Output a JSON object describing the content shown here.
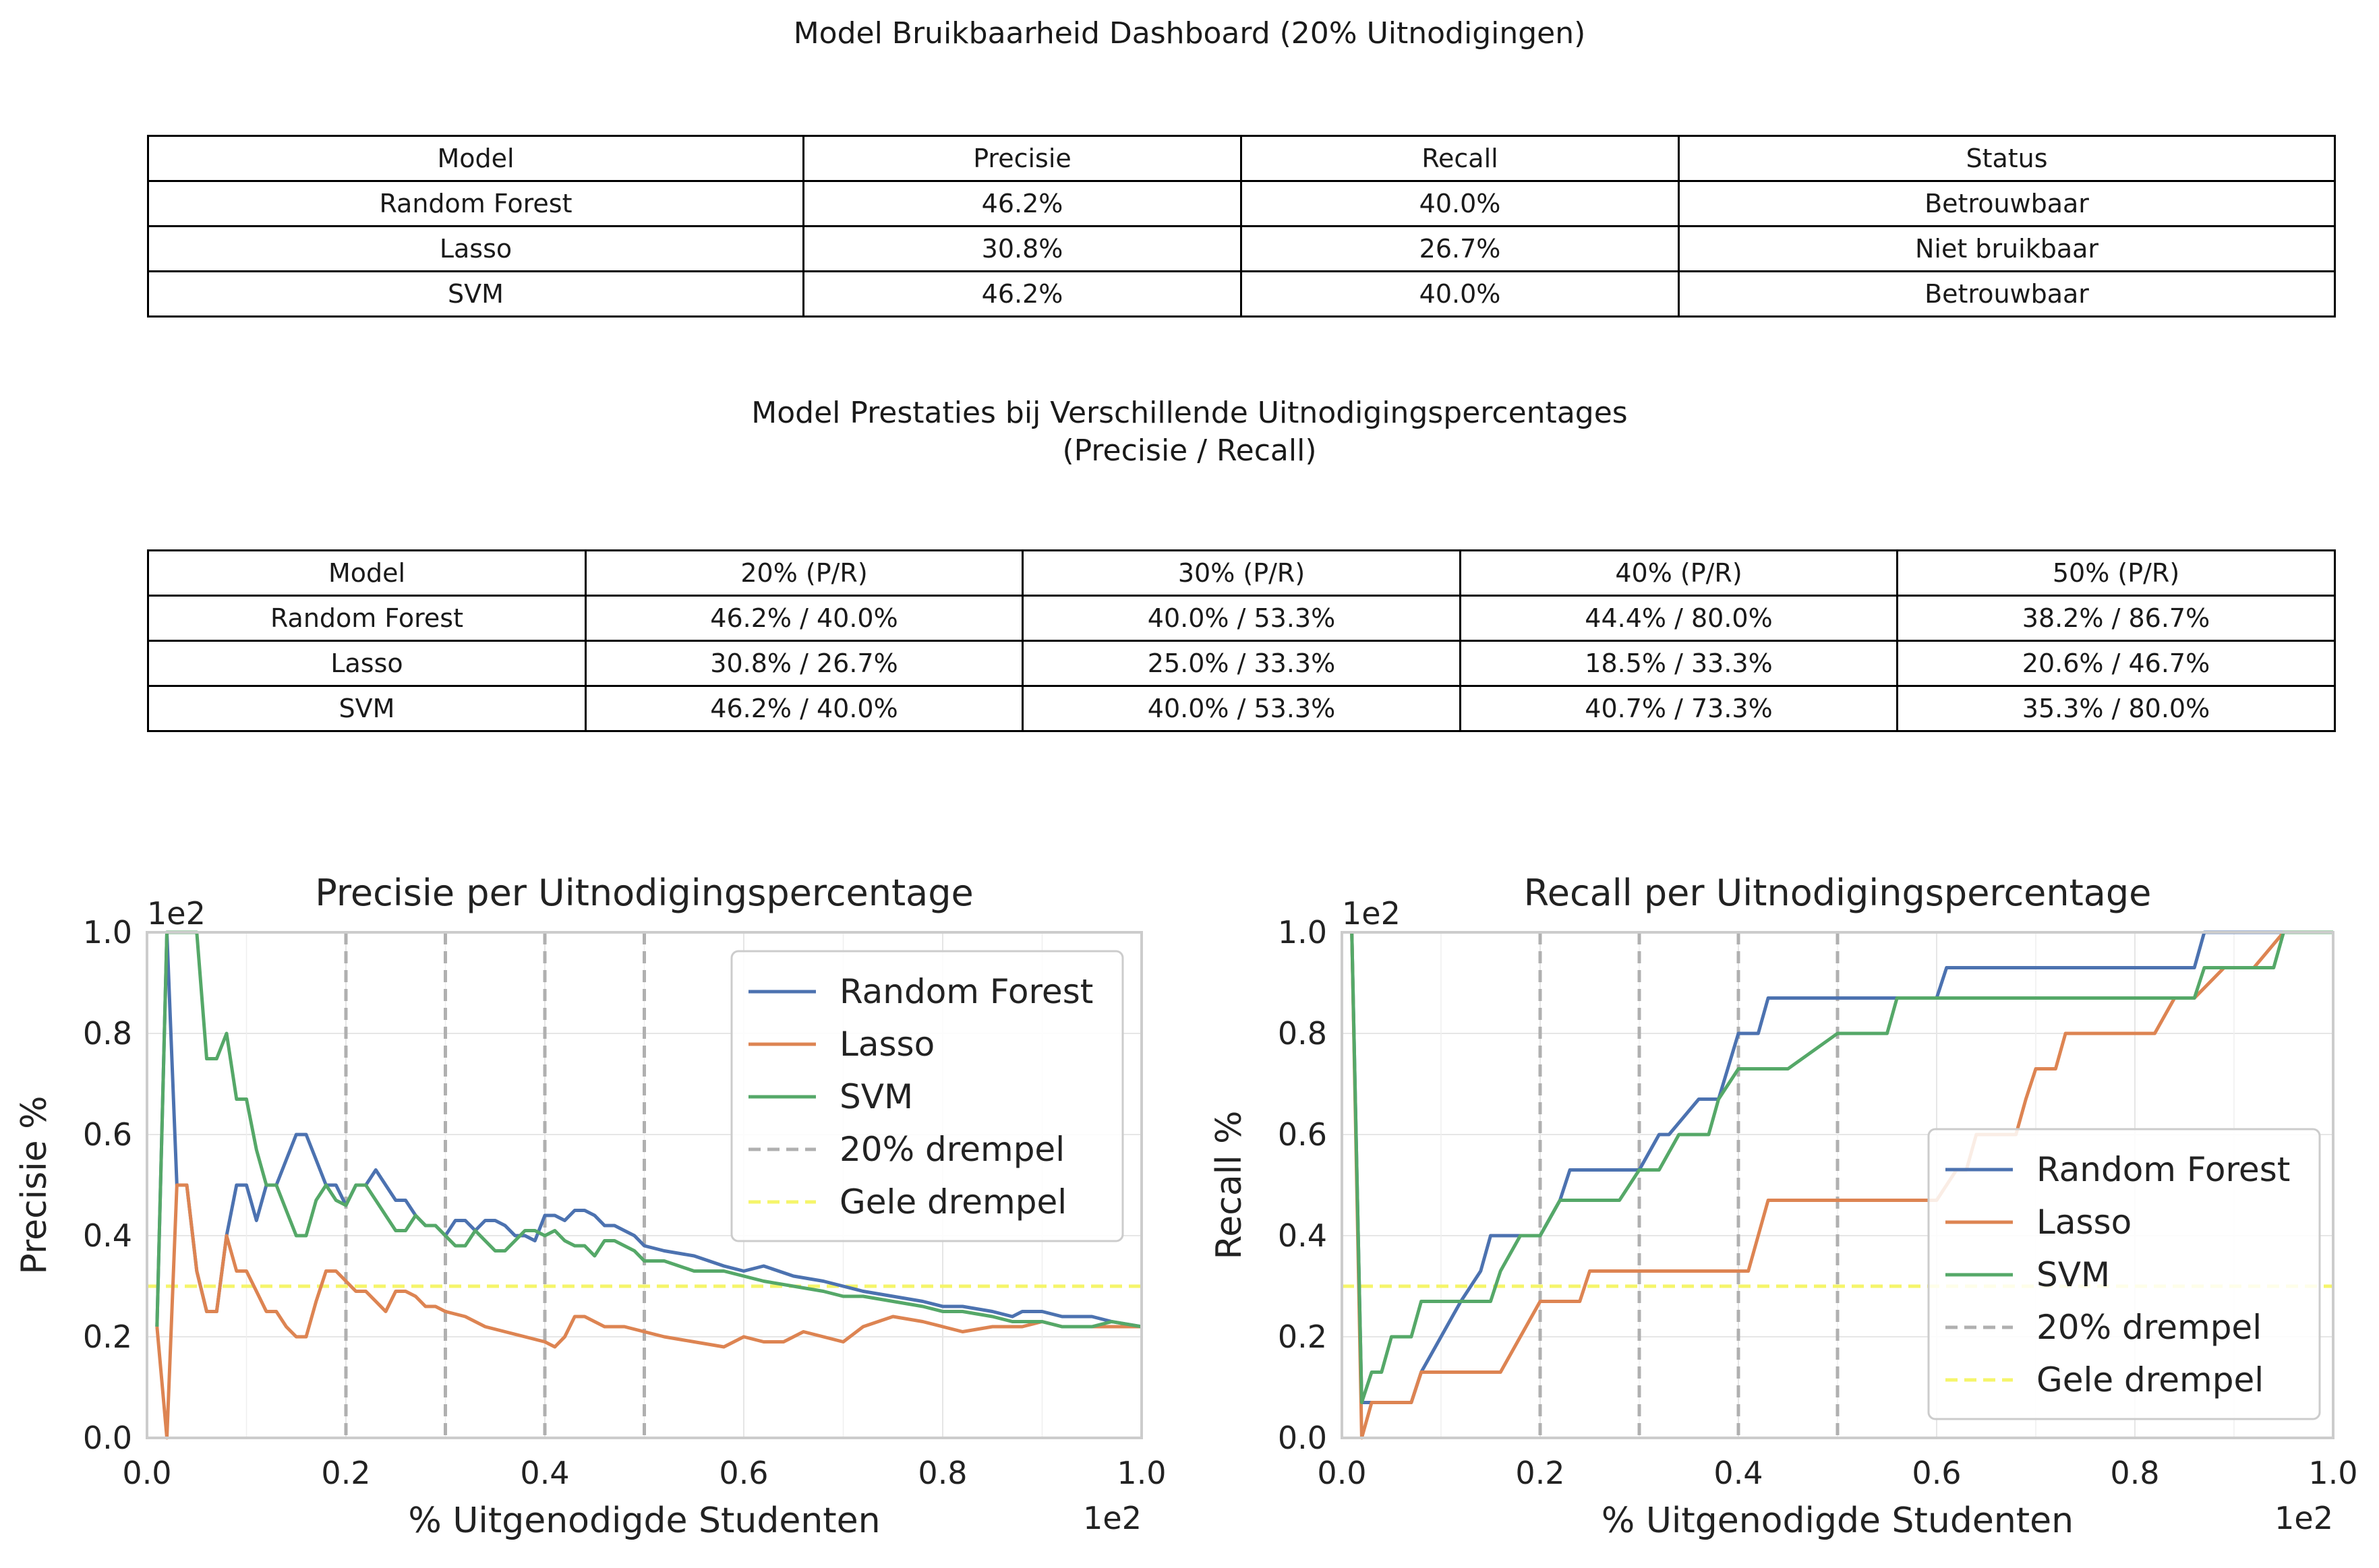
{
  "dashboard": {
    "title": "Model Bruikbaarheid Dashboard (20% Uitnodigingen)",
    "headers": [
      "Model",
      "Precisie",
      "Recall",
      "Status"
    ],
    "rows": [
      [
        "Random Forest",
        "46.2%",
        "40.0%",
        "Betrouwbaar"
      ],
      [
        "Lasso",
        "30.8%",
        "26.7%",
        "Niet bruikbaar"
      ],
      [
        "SVM",
        "46.2%",
        "40.0%",
        "Betrouwbaar"
      ]
    ]
  },
  "performance": {
    "title_line1": "Model Prestaties bij Verschillende Uitnodigingspercentages",
    "title_line2": "(Precisie / Recall)",
    "headers": [
      "Model",
      "20% (P/R)",
      "30% (P/R)",
      "40% (P/R)",
      "50% (P/R)"
    ],
    "rows": [
      [
        "Random Forest",
        "46.2% / 40.0%",
        "40.0% / 53.3%",
        "44.4% / 80.0%",
        "38.2% / 86.7%"
      ],
      [
        "Lasso",
        "30.8% / 26.7%",
        "25.0% / 33.3%",
        "18.5% / 33.3%",
        "20.6% / 46.7%"
      ],
      [
        "SVM",
        "46.2% / 40.0%",
        "40.0% / 53.3%",
        "40.7% / 73.3%",
        "35.3% / 80.0%"
      ]
    ]
  },
  "chart_data": [
    {
      "type": "line",
      "title": "Precisie per Uitnodigingspercentage",
      "xlabel": "% Uitgenodigde Studenten",
      "ylabel": "Precisie %",
      "x_offset_text": "1e2",
      "y_offset_text": "1e2",
      "xlim": [
        0,
        1.0
      ],
      "ylim": [
        0,
        1.0
      ],
      "xticks": [
        "0.0",
        "0.2",
        "0.4",
        "0.6",
        "0.8",
        "1.0"
      ],
      "yticks": [
        "0.0",
        "0.2",
        "0.4",
        "0.6",
        "0.8",
        "1.0"
      ],
      "grid": true,
      "legend_position": "top-right",
      "colors": {
        "Random Forest": "#4c72b0",
        "Lasso": "#dd8452",
        "SVM": "#55a868",
        "threshold20": "#b0b0b0",
        "yellow": "#f5f56a"
      },
      "vlines": [
        0.2,
        0.3,
        0.4,
        0.5
      ],
      "hline": 0.3,
      "legend": [
        "Random Forest",
        "Lasso",
        "SVM",
        "20% drempel",
        "Gele drempel"
      ],
      "series": [
        {
          "name": "Random Forest",
          "x": [
            0.01,
            0.02,
            0.03,
            0.04,
            0.05,
            0.06,
            0.07,
            0.08,
            0.09,
            0.1,
            0.11,
            0.12,
            0.13,
            0.14,
            0.15,
            0.16,
            0.17,
            0.18,
            0.19,
            0.2,
            0.21,
            0.22,
            0.23,
            0.24,
            0.25,
            0.26,
            0.27,
            0.28,
            0.29,
            0.3,
            0.31,
            0.32,
            0.33,
            0.34,
            0.35,
            0.36,
            0.37,
            0.38,
            0.39,
            0.4,
            0.41,
            0.42,
            0.43,
            0.44,
            0.45,
            0.46,
            0.47,
            0.48,
            0.49,
            0.5,
            0.52,
            0.55,
            0.58,
            0.6,
            0.62,
            0.65,
            0.68,
            0.7,
            0.72,
            0.75,
            0.78,
            0.8,
            0.82,
            0.85,
            0.87,
            0.88,
            0.9,
            0.92,
            0.95,
            0.97,
            1.0
          ],
          "y": [
            0.22,
            1.0,
            0.5,
            0.5,
            0.33,
            0.25,
            0.25,
            0.4,
            0.5,
            0.5,
            0.43,
            0.5,
            0.5,
            0.55,
            0.6,
            0.6,
            0.55,
            0.5,
            0.5,
            0.46,
            0.5,
            0.5,
            0.53,
            0.5,
            0.47,
            0.47,
            0.44,
            0.42,
            0.42,
            0.4,
            0.43,
            0.43,
            0.41,
            0.43,
            0.43,
            0.42,
            0.4,
            0.4,
            0.39,
            0.44,
            0.44,
            0.43,
            0.45,
            0.45,
            0.44,
            0.42,
            0.42,
            0.41,
            0.4,
            0.38,
            0.37,
            0.36,
            0.34,
            0.33,
            0.34,
            0.32,
            0.31,
            0.3,
            0.29,
            0.28,
            0.27,
            0.26,
            0.26,
            0.25,
            0.24,
            0.25,
            0.25,
            0.24,
            0.24,
            0.23,
            0.22
          ]
        },
        {
          "name": "Lasso",
          "x": [
            0.01,
            0.02,
            0.03,
            0.04,
            0.05,
            0.06,
            0.07,
            0.08,
            0.09,
            0.1,
            0.11,
            0.12,
            0.13,
            0.14,
            0.15,
            0.16,
            0.17,
            0.18,
            0.19,
            0.2,
            0.21,
            0.22,
            0.23,
            0.24,
            0.25,
            0.26,
            0.27,
            0.28,
            0.29,
            0.3,
            0.32,
            0.34,
            0.36,
            0.38,
            0.4,
            0.41,
            0.42,
            0.43,
            0.44,
            0.46,
            0.48,
            0.5,
            0.52,
            0.55,
            0.58,
            0.6,
            0.62,
            0.64,
            0.66,
            0.68,
            0.7,
            0.72,
            0.75,
            0.78,
            0.8,
            0.82,
            0.85,
            0.88,
            0.9,
            0.92,
            0.95,
            1.0
          ],
          "y": [
            0.22,
            0.0,
            0.5,
            0.5,
            0.33,
            0.25,
            0.25,
            0.4,
            0.33,
            0.33,
            0.29,
            0.25,
            0.25,
            0.22,
            0.2,
            0.2,
            0.27,
            0.33,
            0.33,
            0.31,
            0.29,
            0.29,
            0.27,
            0.25,
            0.29,
            0.29,
            0.28,
            0.26,
            0.26,
            0.25,
            0.24,
            0.22,
            0.21,
            0.2,
            0.19,
            0.18,
            0.2,
            0.24,
            0.24,
            0.22,
            0.22,
            0.21,
            0.2,
            0.19,
            0.18,
            0.2,
            0.19,
            0.19,
            0.21,
            0.2,
            0.19,
            0.22,
            0.24,
            0.23,
            0.22,
            0.21,
            0.22,
            0.22,
            0.23,
            0.22,
            0.22,
            0.22
          ]
        },
        {
          "name": "SVM",
          "x": [
            0.01,
            0.02,
            0.03,
            0.04,
            0.05,
            0.06,
            0.07,
            0.08,
            0.09,
            0.1,
            0.11,
            0.12,
            0.13,
            0.14,
            0.15,
            0.16,
            0.17,
            0.18,
            0.19,
            0.2,
            0.21,
            0.22,
            0.23,
            0.24,
            0.25,
            0.26,
            0.27,
            0.28,
            0.29,
            0.3,
            0.31,
            0.32,
            0.33,
            0.34,
            0.35,
            0.36,
            0.37,
            0.38,
            0.39,
            0.4,
            0.41,
            0.42,
            0.43,
            0.44,
            0.45,
            0.46,
            0.47,
            0.48,
            0.49,
            0.5,
            0.52,
            0.55,
            0.58,
            0.6,
            0.62,
            0.65,
            0.68,
            0.7,
            0.72,
            0.75,
            0.78,
            0.8,
            0.82,
            0.85,
            0.87,
            0.88,
            0.9,
            0.92,
            0.95,
            0.97,
            1.0
          ],
          "y": [
            0.22,
            1.0,
            1.0,
            1.0,
            1.0,
            0.75,
            0.75,
            0.8,
            0.67,
            0.67,
            0.57,
            0.5,
            0.5,
            0.45,
            0.4,
            0.4,
            0.47,
            0.5,
            0.47,
            0.46,
            0.5,
            0.5,
            0.47,
            0.44,
            0.41,
            0.41,
            0.44,
            0.42,
            0.42,
            0.4,
            0.38,
            0.38,
            0.41,
            0.39,
            0.37,
            0.37,
            0.39,
            0.41,
            0.41,
            0.4,
            0.41,
            0.39,
            0.38,
            0.38,
            0.36,
            0.39,
            0.39,
            0.38,
            0.37,
            0.35,
            0.35,
            0.33,
            0.33,
            0.32,
            0.31,
            0.3,
            0.29,
            0.28,
            0.28,
            0.27,
            0.26,
            0.25,
            0.25,
            0.24,
            0.23,
            0.23,
            0.23,
            0.22,
            0.22,
            0.23,
            0.22
          ]
        }
      ]
    },
    {
      "type": "line",
      "title": "Recall per Uitnodigingspercentage",
      "xlabel": "% Uitgenodigde Studenten",
      "ylabel": "Recall %",
      "x_offset_text": "1e2",
      "y_offset_text": "1e2",
      "xlim": [
        0,
        1.0
      ],
      "ylim": [
        0,
        1.0
      ],
      "xticks": [
        "0.0",
        "0.2",
        "0.4",
        "0.6",
        "0.8",
        "1.0"
      ],
      "yticks": [
        "0.0",
        "0.2",
        "0.4",
        "0.6",
        "0.8",
        "1.0"
      ],
      "grid": true,
      "legend_position": "bottom-right",
      "colors": {
        "Random Forest": "#4c72b0",
        "Lasso": "#dd8452",
        "SVM": "#55a868",
        "threshold20": "#b0b0b0",
        "yellow": "#f5f56a"
      },
      "vlines": [
        0.2,
        0.3,
        0.4,
        0.5
      ],
      "hline": 0.3,
      "legend": [
        "Random Forest",
        "Lasso",
        "SVM",
        "20% drempel",
        "Gele drempel"
      ],
      "series": [
        {
          "name": "Random Forest",
          "x": [
            0.01,
            0.02,
            0.03,
            0.04,
            0.07,
            0.08,
            0.1,
            0.12,
            0.14,
            0.15,
            0.18,
            0.2,
            0.22,
            0.23,
            0.28,
            0.3,
            0.32,
            0.33,
            0.36,
            0.37,
            0.38,
            0.4,
            0.42,
            0.43,
            0.45,
            0.55,
            0.6,
            0.61,
            0.63,
            0.85,
            0.86,
            0.87,
            0.95,
            0.96,
            1.0
          ],
          "y": [
            1.0,
            0.07,
            0.07,
            0.07,
            0.07,
            0.13,
            0.2,
            0.27,
            0.33,
            0.4,
            0.4,
            0.4,
            0.47,
            0.53,
            0.53,
            0.53,
            0.6,
            0.6,
            0.67,
            0.67,
            0.67,
            0.8,
            0.8,
            0.87,
            0.87,
            0.87,
            0.87,
            0.93,
            0.93,
            0.93,
            0.93,
            1.0,
            1.0,
            1.0,
            1.0
          ]
        },
        {
          "name": "Lasso",
          "x": [
            0.01,
            0.02,
            0.03,
            0.04,
            0.07,
            0.08,
            0.1,
            0.12,
            0.14,
            0.15,
            0.16,
            0.18,
            0.2,
            0.22,
            0.23,
            0.24,
            0.25,
            0.27,
            0.3,
            0.32,
            0.34,
            0.36,
            0.38,
            0.4,
            0.41,
            0.42,
            0.43,
            0.45,
            0.5,
            0.55,
            0.58,
            0.6,
            0.62,
            0.63,
            0.64,
            0.66,
            0.68,
            0.69,
            0.7,
            0.71,
            0.72,
            0.73,
            0.74,
            0.8,
            0.82,
            0.84,
            0.86,
            0.89,
            0.92,
            0.95,
            0.96,
            1.0
          ],
          "y": [
            1.0,
            0.0,
            0.07,
            0.07,
            0.07,
            0.13,
            0.13,
            0.13,
            0.13,
            0.13,
            0.13,
            0.2,
            0.27,
            0.27,
            0.27,
            0.27,
            0.33,
            0.33,
            0.33,
            0.33,
            0.33,
            0.33,
            0.33,
            0.33,
            0.33,
            0.4,
            0.47,
            0.47,
            0.47,
            0.47,
            0.47,
            0.47,
            0.53,
            0.53,
            0.6,
            0.6,
            0.6,
            0.67,
            0.73,
            0.73,
            0.73,
            0.8,
            0.8,
            0.8,
            0.8,
            0.87,
            0.87,
            0.93,
            0.93,
            1.0,
            1.0,
            1.0
          ]
        },
        {
          "name": "SVM",
          "x": [
            0.01,
            0.02,
            0.03,
            0.04,
            0.05,
            0.06,
            0.07,
            0.08,
            0.12,
            0.14,
            0.15,
            0.16,
            0.18,
            0.2,
            0.22,
            0.24,
            0.26,
            0.28,
            0.3,
            0.31,
            0.32,
            0.34,
            0.36,
            0.37,
            0.38,
            0.4,
            0.45,
            0.5,
            0.52,
            0.55,
            0.56,
            0.6,
            0.7,
            0.8,
            0.86,
            0.87,
            0.9,
            0.94,
            0.95,
            1.0
          ],
          "y": [
            1.0,
            0.07,
            0.13,
            0.13,
            0.2,
            0.2,
            0.2,
            0.27,
            0.27,
            0.27,
            0.27,
            0.33,
            0.4,
            0.4,
            0.47,
            0.47,
            0.47,
            0.47,
            0.53,
            0.53,
            0.53,
            0.6,
            0.6,
            0.6,
            0.67,
            0.73,
            0.73,
            0.8,
            0.8,
            0.8,
            0.87,
            0.87,
            0.87,
            0.87,
            0.87,
            0.93,
            0.93,
            0.93,
            1.0,
            1.0
          ]
        }
      ]
    }
  ]
}
